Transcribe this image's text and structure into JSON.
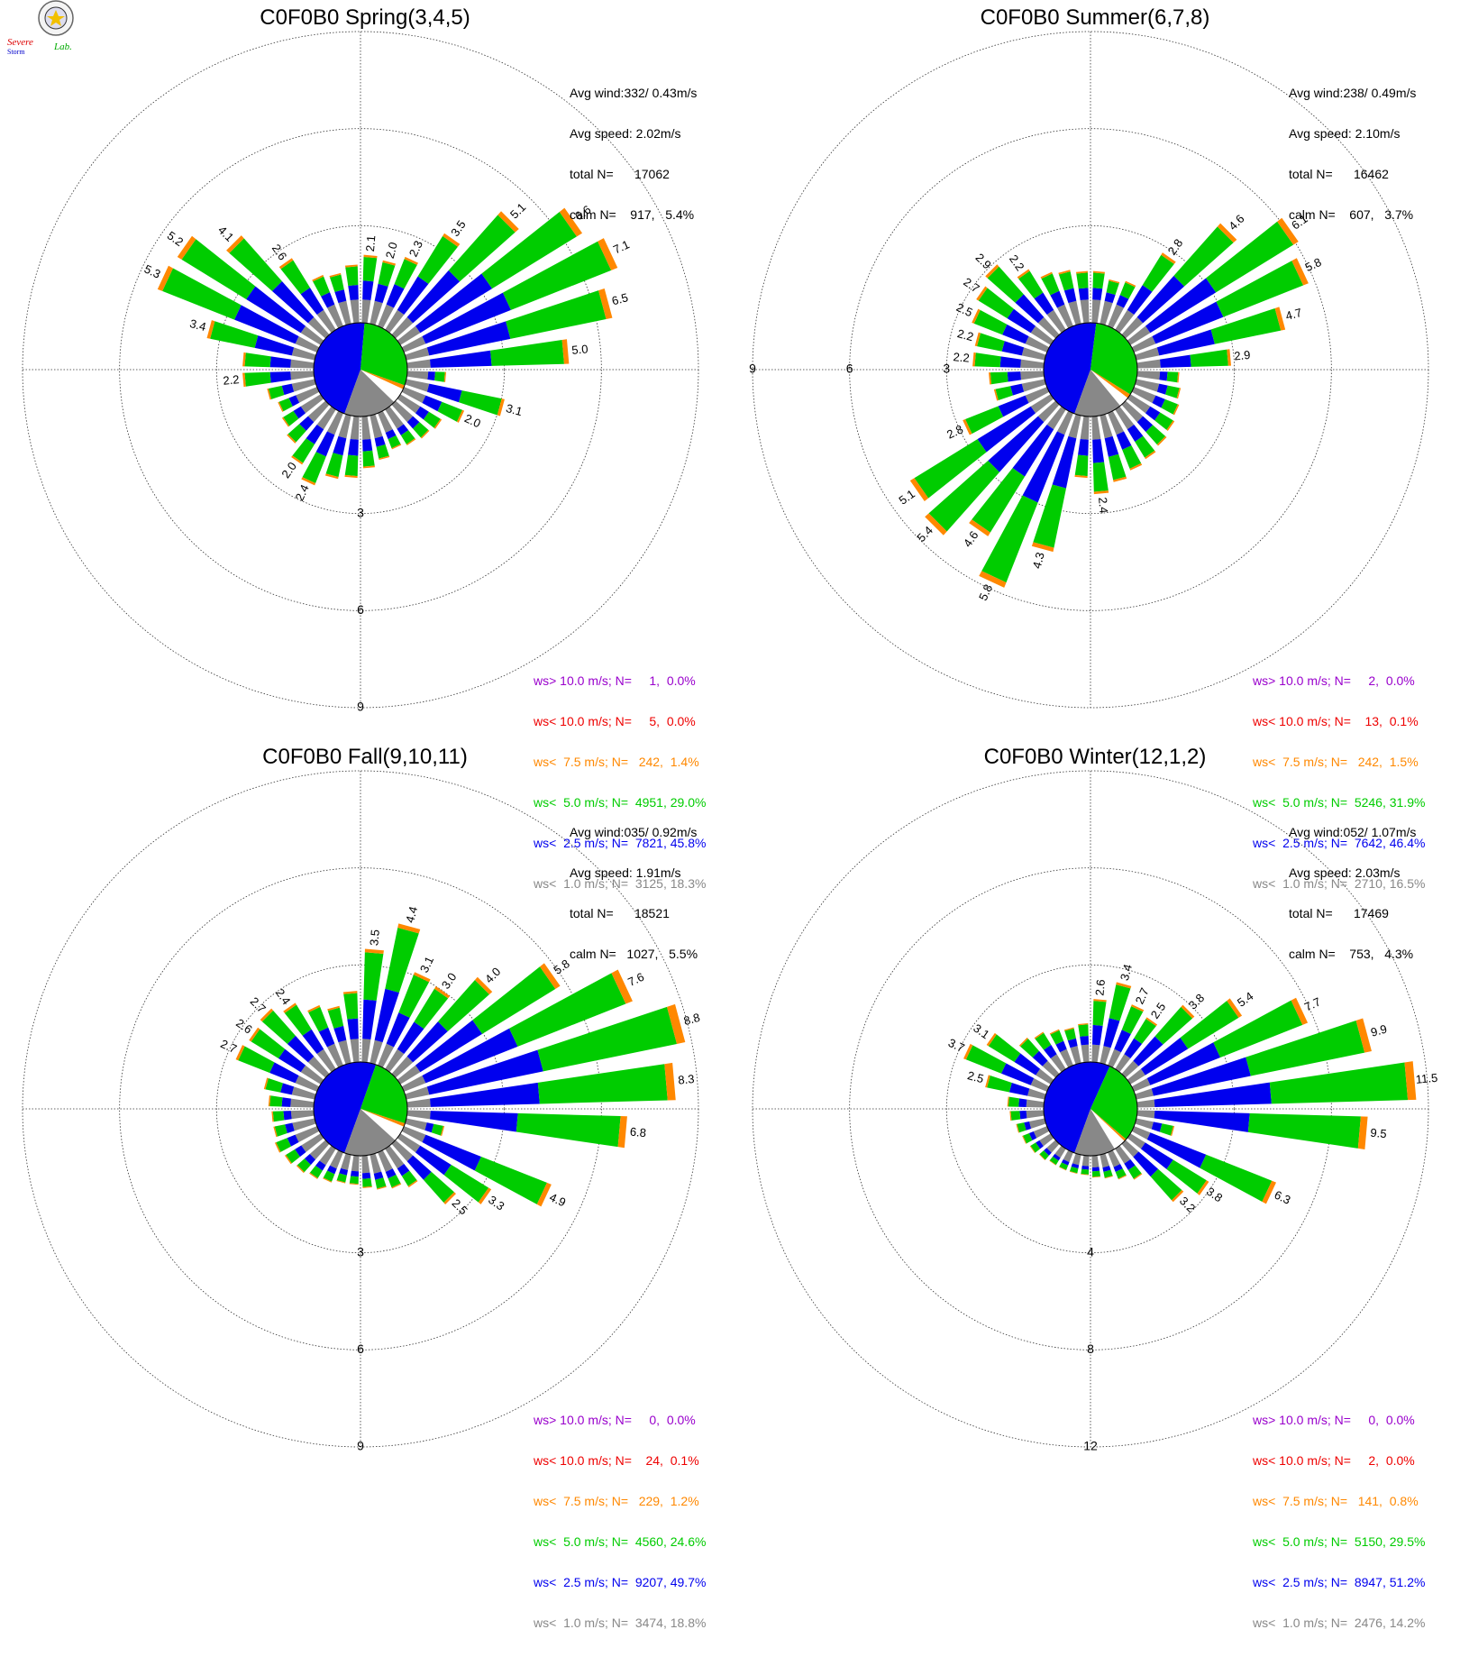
{
  "logo": {
    "text_left": "Severe",
    "text_sub": "Storm",
    "text_right": "Lab."
  },
  "colors": {
    "calm": "#888888",
    "lt1": "#888888",
    "lt2_5": "#0000ee",
    "lt5": "#00cc00",
    "lt7_5": "#ff8800",
    "lt10": "#ee0000",
    "gt10": "#9900cc"
  },
  "chart_data": [
    {
      "type": "windrose",
      "title": "C0F0B0 Spring(3,4,5)",
      "stats": [
        "Avg wind:332/ 0.43m/s",
        "Avg speed: 2.02m/s",
        "total N=      17062",
        "calm N=    917,   5.4%"
      ],
      "rings": [
        "3",
        "6",
        "9"
      ],
      "ring_max": 9,
      "ring_label_angle": 180,
      "labels": [
        {
          "dir": 5,
          "text": "2.1"
        },
        {
          "dir": 15,
          "text": "2.0"
        },
        {
          "dir": 25,
          "text": "2.3"
        },
        {
          "dir": 35,
          "text": "3.5"
        },
        {
          "dir": 45,
          "text": "5.1"
        },
        {
          "dir": 55,
          "text": "6.6"
        },
        {
          "dir": 65,
          "text": "7.1"
        },
        {
          "dir": 75,
          "text": "6.5"
        },
        {
          "dir": 85,
          "text": "5.0"
        },
        {
          "dir": 105,
          "text": "3.1"
        },
        {
          "dir": 115,
          "text": "2.0"
        },
        {
          "dir": 205,
          "text": "2.4"
        },
        {
          "dir": 215,
          "text": "2.0"
        },
        {
          "dir": 265,
          "text": "2.2"
        },
        {
          "dir": 285,
          "text": "3.4"
        },
        {
          "dir": 295,
          "text": "5.3"
        },
        {
          "dir": 305,
          "text": "5.2"
        },
        {
          "dir": 315,
          "text": "4.1"
        },
        {
          "dir": 325,
          "text": "2.6"
        }
      ],
      "dir_totals": [
        2.1,
        2.0,
        2.3,
        3.5,
        5.1,
        6.6,
        7.1,
        6.5,
        5.0,
        1.2,
        3.1,
        2.0,
        1.5,
        1.4,
        1.3,
        1.2,
        1.4,
        1.6,
        1.9,
        2.0,
        2.4,
        2.0,
        1.6,
        1.4,
        1.3,
        1.5,
        2.2,
        2.2,
        3.4,
        5.3,
        5.2,
        4.1,
        2.6,
        1.7,
        1.6,
        1.8
      ],
      "legend": [
        {
          "key": "gt10",
          "text": "ws> 10.0 m/s; N=     1,  0.0%"
        },
        {
          "key": "lt10",
          "text": "ws< 10.0 m/s; N=     5,  0.0%"
        },
        {
          "key": "lt7_5",
          "text": "ws<  7.5 m/s; N=   242,  1.4%"
        },
        {
          "key": "lt5",
          "text": "ws<  5.0 m/s; N=  4951, 29.0%"
        },
        {
          "key": "lt2_5",
          "text": "ws<  2.5 m/s; N=  7821, 45.8%"
        },
        {
          "key": "lt1",
          "text": "ws<  1.0 m/s; N=  3125, 18.3%"
        }
      ],
      "pie": {
        "calm": 5.4,
        "lt1": 18.3,
        "lt2_5": 45.8,
        "lt5": 29.0,
        "lt7_5": 1.4
      }
    },
    {
      "type": "windrose",
      "title": "C0F0B0 Summer(6,7,8)",
      "stats": [
        "Avg wind:238/ 0.49m/s",
        "Avg speed: 2.10m/s",
        "total N=      16462",
        "calm N=    607,   3.7%"
      ],
      "rings": [
        "3",
        "6",
        "9"
      ],
      "ring_max": 9,
      "ring_label_angle": 270,
      "labels": [
        {
          "dir": 35,
          "text": "2.8"
        },
        {
          "dir": 45,
          "text": "4.6"
        },
        {
          "dir": 55,
          "text": "6.1"
        },
        {
          "dir": 65,
          "text": "5.8"
        },
        {
          "dir": 75,
          "text": "4.7"
        },
        {
          "dir": 85,
          "text": "2.9"
        },
        {
          "dir": 175,
          "text": "2.4"
        },
        {
          "dir": 195,
          "text": "4.3"
        },
        {
          "dir": 205,
          "text": "5.8"
        },
        {
          "dir": 215,
          "text": "4.6"
        },
        {
          "dir": 225,
          "text": "5.4"
        },
        {
          "dir": 235,
          "text": "5.1"
        },
        {
          "dir": 245,
          "text": "2.8"
        },
        {
          "dir": 275,
          "text": "2.2"
        },
        {
          "dir": 285,
          "text": "2.2"
        },
        {
          "dir": 295,
          "text": "2.5"
        },
        {
          "dir": 305,
          "text": "2.7"
        },
        {
          "dir": 315,
          "text": "2.9"
        },
        {
          "dir": 325,
          "text": "2.2"
        }
      ],
      "dir_totals": [
        1.6,
        1.4,
        1.5,
        2.8,
        4.6,
        6.1,
        5.8,
        4.7,
        2.9,
        1.3,
        1.4,
        1.5,
        1.6,
        1.7,
        1.8,
        1.9,
        2.1,
        2.4,
        1.9,
        4.3,
        5.8,
        4.6,
        5.4,
        5.1,
        2.8,
        1.6,
        1.7,
        2.2,
        2.2,
        2.5,
        2.7,
        2.9,
        2.2,
        1.8,
        1.7,
        1.6
      ],
      "legend": [
        {
          "key": "gt10",
          "text": "ws> 10.0 m/s; N=     2,  0.0%"
        },
        {
          "key": "lt10",
          "text": "ws< 10.0 m/s; N=    13,  0.1%"
        },
        {
          "key": "lt7_5",
          "text": "ws<  7.5 m/s; N=   242,  1.5%"
        },
        {
          "key": "lt5",
          "text": "ws<  5.0 m/s; N=  5246, 31.9%"
        },
        {
          "key": "lt2_5",
          "text": "ws<  2.5 m/s; N=  7642, 46.4%"
        },
        {
          "key": "lt1",
          "text": "ws<  1.0 m/s; N=  2710, 16.5%"
        }
      ],
      "pie": {
        "calm": 3.7,
        "lt1": 16.5,
        "lt2_5": 46.4,
        "lt5": 31.9,
        "lt7_5": 1.5
      }
    },
    {
      "type": "windrose",
      "title": "C0F0B0 Fall(9,10,11)",
      "stats": [
        "Avg wind:035/ 0.92m/s",
        "Avg speed: 1.91m/s",
        "total N=      18521",
        "calm N=   1027,   5.5%"
      ],
      "rings": [
        "3",
        "6",
        "9"
      ],
      "ring_max": 9,
      "ring_label_angle": 180,
      "labels": [
        {
          "dir": 5,
          "text": "3.5"
        },
        {
          "dir": 15,
          "text": "4.4"
        },
        {
          "dir": 25,
          "text": "3.1"
        },
        {
          "dir": 35,
          "text": "3.0"
        },
        {
          "dir": 45,
          "text": "4.0"
        },
        {
          "dir": 55,
          "text": "5.8"
        },
        {
          "dir": 65,
          "text": "7.6"
        },
        {
          "dir": 75,
          "text": "8.8"
        },
        {
          "dir": 85,
          "text": "8.3"
        },
        {
          "dir": 95,
          "text": "6.8"
        },
        {
          "dir": 115,
          "text": "4.9"
        },
        {
          "dir": 125,
          "text": "3.3"
        },
        {
          "dir": 135,
          "text": "2.5"
        },
        {
          "dir": 295,
          "text": "2.7"
        },
        {
          "dir": 305,
          "text": "2.6"
        },
        {
          "dir": 315,
          "text": "2.7"
        },
        {
          "dir": 325,
          "text": "2.4"
        }
      ],
      "dir_totals": [
        3.5,
        4.4,
        3.1,
        3.0,
        4.0,
        5.8,
        7.6,
        8.8,
        8.3,
        6.8,
        1.2,
        4.9,
        3.3,
        2.5,
        1.4,
        1.2,
        1.1,
        1.0,
        0.9,
        0.9,
        1.0,
        1.1,
        1.2,
        1.3,
        1.4,
        1.3,
        1.3,
        1.4,
        1.6,
        2.7,
        2.6,
        2.7,
        2.4,
        2.0,
        1.8,
        2.2
      ],
      "legend": [
        {
          "key": "gt10",
          "text": "ws> 10.0 m/s; N=     0,  0.0%"
        },
        {
          "key": "lt10",
          "text": "ws< 10.0 m/s; N=    24,  0.1%"
        },
        {
          "key": "lt7_5",
          "text": "ws<  7.5 m/s; N=   229,  1.2%"
        },
        {
          "key": "lt5",
          "text": "ws<  5.0 m/s; N=  4560, 24.6%"
        },
        {
          "key": "lt2_5",
          "text": "ws<  2.5 m/s; N=  9207, 49.7%"
        },
        {
          "key": "lt1",
          "text": "ws<  1.0 m/s; N=  3474, 18.8%"
        }
      ],
      "pie": {
        "calm": 5.5,
        "lt1": 18.8,
        "lt2_5": 49.7,
        "lt5": 24.6,
        "lt7_5": 1.2
      }
    },
    {
      "type": "windrose",
      "title": "C0F0B0 Winter(12,1,2)",
      "stats": [
        "Avg wind:052/ 1.07m/s",
        "Avg speed: 2.03m/s",
        "total N=      17469",
        "calm N=    753,   4.3%"
      ],
      "rings": [
        "4",
        "8",
        "12"
      ],
      "ring_max": 12,
      "ring_label_angle": 180,
      "labels": [
        {
          "dir": 5,
          "text": "2.6"
        },
        {
          "dir": 15,
          "text": "3.4"
        },
        {
          "dir": 25,
          "text": "2.7"
        },
        {
          "dir": 35,
          "text": "2.5"
        },
        {
          "dir": 45,
          "text": "3.8"
        },
        {
          "dir": 55,
          "text": "5.4"
        },
        {
          "dir": 65,
          "text": "7.7"
        },
        {
          "dir": 75,
          "text": "9.9"
        },
        {
          "dir": 85,
          "text": "11.5"
        },
        {
          "dir": 95,
          "text": "9.5"
        },
        {
          "dir": 115,
          "text": "6.3"
        },
        {
          "dir": 125,
          "text": "3.8"
        },
        {
          "dir": 135,
          "text": "3.2"
        },
        {
          "dir": 285,
          "text": "2.5"
        },
        {
          "dir": 295,
          "text": "3.7"
        },
        {
          "dir": 305,
          "text": "3.1"
        }
      ],
      "dir_totals": [
        2.6,
        3.4,
        2.7,
        2.5,
        3.8,
        5.4,
        7.7,
        9.9,
        11.5,
        9.5,
        1.6,
        6.3,
        3.8,
        3.2,
        1.5,
        1.2,
        1.0,
        0.9,
        0.8,
        0.8,
        0.8,
        0.8,
        0.9,
        1.0,
        1.1,
        1.2,
        1.4,
        1.5,
        2.5,
        3.7,
        3.1,
        2.0,
        1.8,
        1.6,
        1.5,
        1.6
      ],
      "legend": [
        {
          "key": "gt10",
          "text": "ws> 10.0 m/s; N=     0,  0.0%"
        },
        {
          "key": "lt10",
          "text": "ws< 10.0 m/s; N=     2,  0.0%"
        },
        {
          "key": "lt7_5",
          "text": "ws<  7.5 m/s; N=   141,  0.8%"
        },
        {
          "key": "lt5",
          "text": "ws<  5.0 m/s; N=  5150, 29.5%"
        },
        {
          "key": "lt2_5",
          "text": "ws<  2.5 m/s; N=  8947, 51.2%"
        },
        {
          "key": "lt1",
          "text": "ws<  1.0 m/s; N=  2476, 14.2%"
        }
      ],
      "pie": {
        "calm": 4.3,
        "lt1": 14.2,
        "lt2_5": 51.2,
        "lt5": 29.5,
        "lt7_5": 0.8
      }
    }
  ]
}
